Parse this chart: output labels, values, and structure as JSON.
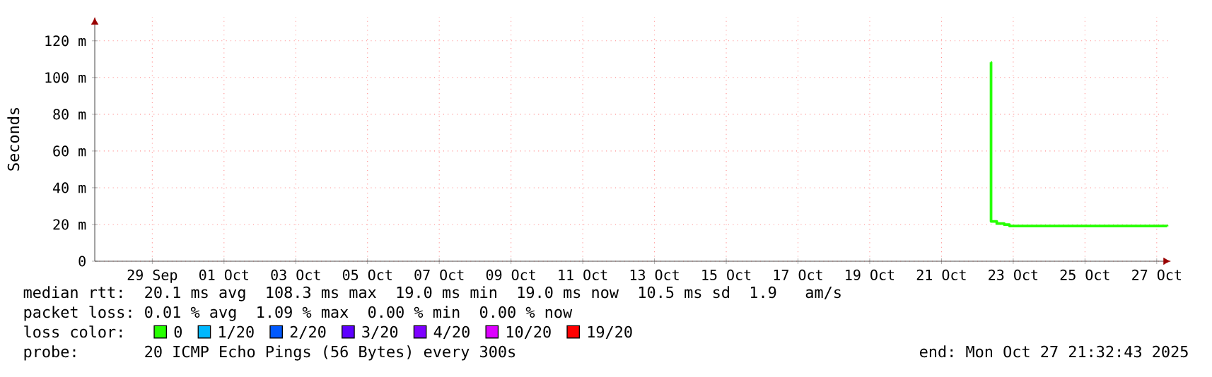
{
  "chart_data": {
    "type": "step",
    "ylabel": "Seconds",
    "x": [
      "2025-10-22T21:00",
      "2025-10-22T21:10",
      "2025-10-23T01:00",
      "2025-10-23T06:00",
      "2025-10-23T09:30",
      "2025-10-27T19:00"
    ],
    "series": [
      {
        "name": "0",
        "color": "#26ff00",
        "values": [
          108.3,
          21.7,
          20.5,
          19.9,
          19.2,
          19.0
        ]
      },
      {
        "name": "1/20",
        "color": "#00b8ff",
        "values": [
          null,
          null,
          null,
          null,
          null,
          null
        ]
      },
      {
        "name": "2/20",
        "color": "#0059ff",
        "values": [
          null,
          null,
          null,
          null,
          null,
          null
        ]
      },
      {
        "name": "3/20",
        "color": "#5e00ff",
        "values": [
          null,
          null,
          null,
          null,
          null,
          null
        ]
      },
      {
        "name": "4/20",
        "color": "#7e00ff",
        "values": [
          null,
          null,
          null,
          null,
          null,
          null
        ]
      },
      {
        "name": "10/20",
        "color": "#dd00ff",
        "values": [
          null,
          null,
          null,
          null,
          null,
          null
        ]
      },
      {
        "name": "19/20",
        "color": "#ff0000",
        "values": [
          null,
          null,
          null,
          null,
          null,
          null
        ]
      }
    ],
    "legend_title": "loss color:",
    "legend": "bottom",
    "xlim": [
      "2025-09-27T21:32",
      "2025-10-27T21:32"
    ],
    "xticks": [
      {
        "value": "2025-09-29T12:00",
        "label": "29 Sep"
      },
      {
        "value": "2025-10-01T12:00",
        "label": "01 Oct"
      },
      {
        "value": "2025-10-03T12:00",
        "label": "03 Oct"
      },
      {
        "value": "2025-10-05T12:00",
        "label": "05 Oct"
      },
      {
        "value": "2025-10-07T12:00",
        "label": "07 Oct"
      },
      {
        "value": "2025-10-09T12:00",
        "label": "09 Oct"
      },
      {
        "value": "2025-10-11T12:00",
        "label": "11 Oct"
      },
      {
        "value": "2025-10-13T12:00",
        "label": "13 Oct"
      },
      {
        "value": "2025-10-15T12:00",
        "label": "15 Oct"
      },
      {
        "value": "2025-10-17T12:00",
        "label": "17 Oct"
      },
      {
        "value": "2025-10-19T12:00",
        "label": "19 Oct"
      },
      {
        "value": "2025-10-21T12:00",
        "label": "21 Oct"
      },
      {
        "value": "2025-10-23T12:00",
        "label": "23 Oct"
      },
      {
        "value": "2025-10-25T12:00",
        "label": "25 Oct"
      },
      {
        "value": "2025-10-27T12:00",
        "label": "27 Oct"
      }
    ],
    "ylim": [
      0,
      133
    ],
    "yticks": [
      {
        "value": 0,
        "label": "0"
      },
      {
        "value": 20,
        "label": "20 m"
      },
      {
        "value": 40,
        "label": "40 m"
      },
      {
        "value": 60,
        "label": "60 m"
      },
      {
        "value": 80,
        "label": "80 m"
      },
      {
        "value": 100,
        "label": "100 m"
      },
      {
        "value": 120,
        "label": "120 m"
      }
    ],
    "grid": true,
    "line_style": "solid",
    "marker": "none",
    "annotations": [
      "median rtt:  20.1 ms avg  108.3 ms max  19.0 ms min  19.0 ms now  10.5 ms sd  1.9   am/s",
      "packet loss: 0.01 % avg  1.09 % max  0.00 % min  0.00 % now",
      "probe:       20 ICMP Echo Pings (56 Bytes) every 300s",
      "end: Mon Oct 27 21:32:43 2025"
    ]
  }
}
